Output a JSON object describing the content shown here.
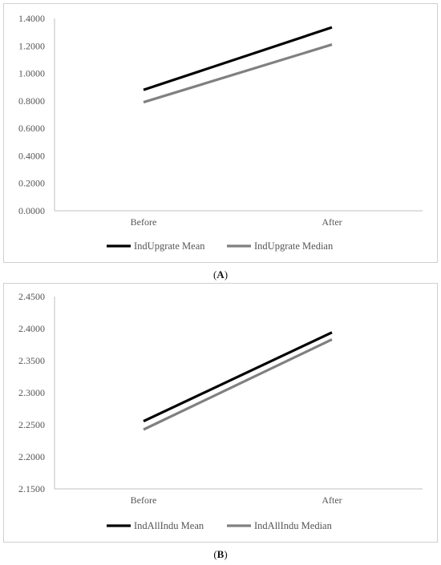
{
  "chart_data": [
    {
      "type": "line",
      "categories": [
        "Before",
        "After"
      ],
      "series": [
        {
          "name": "IndUpgrate Mean",
          "values": [
            0.88,
            1.335
          ],
          "color": "#000000"
        },
        {
          "name": "IndUpgrate Median",
          "values": [
            0.79,
            1.21
          ],
          "color": "#808080"
        }
      ],
      "ylim": [
        0,
        1.4
      ],
      "yticks": [
        "0.0000",
        "0.2000",
        "0.4000",
        "0.6000",
        "0.8000",
        "1.0000",
        "1.2000",
        "1.4000"
      ],
      "grid": false,
      "legend": "bottom",
      "caption_letter": "A"
    },
    {
      "type": "line",
      "categories": [
        "Before",
        "After"
      ],
      "series": [
        {
          "name": "IndAllIndu Mean",
          "values": [
            2.2555,
            2.394
          ],
          "color": "#000000"
        },
        {
          "name": "IndAllIndu Median",
          "values": [
            2.2425,
            2.383
          ],
          "color": "#808080"
        }
      ],
      "ylim": [
        2.15,
        2.45
      ],
      "yticks": [
        "2.1500",
        "2.2000",
        "2.2500",
        "2.3000",
        "2.3500",
        "2.4000",
        "2.4500"
      ],
      "grid": false,
      "legend": "bottom",
      "caption_letter": "B"
    }
  ]
}
